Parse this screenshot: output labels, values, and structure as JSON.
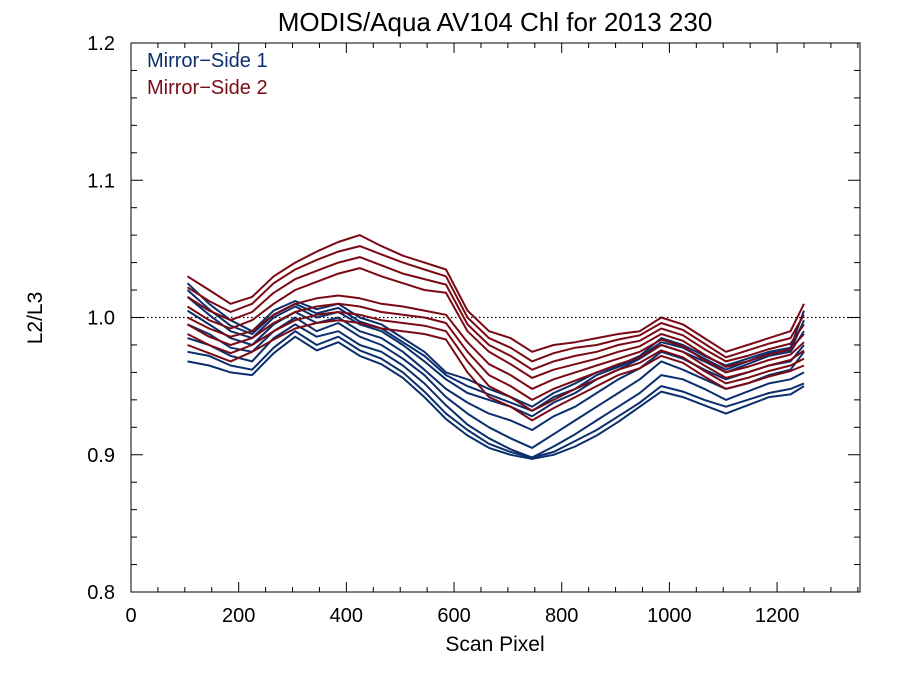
{
  "chart_data": {
    "type": "line",
    "title": "MODIS/Aqua AV104 Chl for 2013 230",
    "xlabel": "Scan Pixel",
    "ylabel": "L2/L3",
    "xlim": [
      0,
      1354
    ],
    "ylim": [
      0.8,
      1.2
    ],
    "xticks": [
      0,
      200,
      400,
      600,
      800,
      1000,
      1200
    ],
    "xtick_labels": [
      "0",
      "200",
      "400",
      "600",
      "800",
      "1000",
      "1200"
    ],
    "yticks": [
      0.8,
      0.9,
      1.0,
      1.1,
      1.2
    ],
    "ytick_labels": [
      "0.8",
      "0.9",
      "1.0",
      "1.1",
      "1.2"
    ],
    "reference_line": 1.0,
    "grid": false,
    "legend_position": "top-left",
    "x": [
      105,
      145,
      185,
      225,
      265,
      305,
      345,
      385,
      425,
      465,
      505,
      545,
      585,
      625,
      665,
      705,
      745,
      785,
      825,
      865,
      905,
      945,
      985,
      1025,
      1065,
      1105,
      1145,
      1185,
      1225,
      1250
    ],
    "series": [
      {
        "name": "Mirror−Side 1",
        "color": "#0b2f6e",
        "lines": [
          [
            1.025,
            1.01,
            0.998,
            0.99,
            1.005,
            1.012,
            1.006,
            1.01,
            1.0,
            0.995,
            0.985,
            0.975,
            0.96,
            0.955,
            0.948,
            0.942,
            0.935,
            0.945,
            0.952,
            0.96,
            0.965,
            0.972,
            0.985,
            0.98,
            0.972,
            0.965,
            0.97,
            0.975,
            0.978,
            1.005
          ],
          [
            1.015,
            1.002,
            0.99,
            0.985,
            1.0,
            1.008,
            1.0,
            1.004,
            0.995,
            0.99,
            0.98,
            0.968,
            0.955,
            0.945,
            0.94,
            0.935,
            0.928,
            0.938,
            0.945,
            0.955,
            0.962,
            0.97,
            0.98,
            0.975,
            0.968,
            0.96,
            0.966,
            0.972,
            0.975,
            0.99
          ],
          [
            1.005,
            0.995,
            0.985,
            0.98,
            0.995,
            1.004,
            0.996,
            1.0,
            0.99,
            0.985,
            0.975,
            0.962,
            0.948,
            0.938,
            0.93,
            0.925,
            0.918,
            0.928,
            0.935,
            0.945,
            0.955,
            0.963,
            0.975,
            0.97,
            0.962,
            0.955,
            0.96,
            0.965,
            0.968,
            0.98
          ],
          [
            0.995,
            0.988,
            0.978,
            0.975,
            0.99,
            1.0,
            0.99,
            0.996,
            0.986,
            0.98,
            0.97,
            0.958,
            0.942,
            0.93,
            0.92,
            0.912,
            0.905,
            0.915,
            0.925,
            0.935,
            0.945,
            0.955,
            0.968,
            0.962,
            0.955,
            0.948,
            0.952,
            0.958,
            0.962,
            0.975
          ],
          [
            0.985,
            0.98,
            0.972,
            0.968,
            0.985,
            0.995,
            0.986,
            0.99,
            0.98,
            0.975,
            0.965,
            0.952,
            0.936,
            0.922,
            0.912,
            0.904,
            0.898,
            0.906,
            0.915,
            0.925,
            0.935,
            0.945,
            0.958,
            0.955,
            0.948,
            0.94,
            0.946,
            0.952,
            0.955,
            0.96
          ],
          [
            0.975,
            0.972,
            0.965,
            0.962,
            0.978,
            0.99,
            0.98,
            0.986,
            0.976,
            0.97,
            0.96,
            0.946,
            0.93,
            0.918,
            0.908,
            0.902,
            0.898,
            0.902,
            0.91,
            0.918,
            0.928,
            0.938,
            0.95,
            0.946,
            0.94,
            0.935,
            0.94,
            0.945,
            0.948,
            0.952
          ],
          [
            1.02,
            1.006,
            0.994,
            0.988,
            1.002,
            1.01,
            1.003,
            1.007,
            0.997,
            0.992,
            0.982,
            0.972,
            0.958,
            0.95,
            0.944,
            0.938,
            0.932,
            0.942,
            0.948,
            0.958,
            0.964,
            0.971,
            0.982,
            0.978,
            0.97,
            0.962,
            0.968,
            0.974,
            0.976,
            0.998
          ],
          [
            0.968,
            0.965,
            0.96,
            0.958,
            0.974,
            0.986,
            0.976,
            0.982,
            0.972,
            0.966,
            0.956,
            0.942,
            0.926,
            0.914,
            0.905,
            0.9,
            0.897,
            0.9,
            0.906,
            0.914,
            0.924,
            0.935,
            0.946,
            0.942,
            0.936,
            0.93,
            0.936,
            0.942,
            0.944,
            0.95
          ]
        ]
      },
      {
        "name": "Mirror−Side 2",
        "color": "#7a0a14",
        "lines": [
          [
            1.03,
            1.02,
            1.01,
            1.015,
            1.03,
            1.04,
            1.048,
            1.055,
            1.06,
            1.052,
            1.045,
            1.04,
            1.035,
            1.005,
            0.99,
            0.985,
            0.975,
            0.98,
            0.982,
            0.985,
            0.988,
            0.99,
            1.0,
            0.995,
            0.985,
            0.975,
            0.98,
            0.985,
            0.99,
            1.01
          ],
          [
            1.022,
            1.012,
            1.004,
            1.01,
            1.025,
            1.035,
            1.042,
            1.048,
            1.052,
            1.046,
            1.04,
            1.035,
            1.03,
            1.0,
            0.985,
            0.978,
            0.968,
            0.974,
            0.978,
            0.98,
            0.984,
            0.987,
            0.996,
            0.991,
            0.981,
            0.971,
            0.976,
            0.981,
            0.985,
            1.002
          ],
          [
            1.015,
            1.005,
            0.998,
            1.004,
            1.018,
            1.028,
            1.034,
            1.04,
            1.044,
            1.038,
            1.032,
            1.028,
            1.024,
            0.995,
            0.98,
            0.972,
            0.962,
            0.968,
            0.972,
            0.975,
            0.98,
            0.983,
            0.992,
            0.987,
            0.977,
            0.968,
            0.972,
            0.977,
            0.981,
            0.995
          ],
          [
            1.008,
            0.998,
            0.992,
            0.998,
            1.01,
            1.02,
            1.026,
            1.032,
            1.036,
            1.03,
            1.025,
            1.02,
            1.018,
            0.99,
            0.975,
            0.966,
            0.956,
            0.962,
            0.966,
            0.97,
            0.975,
            0.979,
            0.988,
            0.983,
            0.973,
            0.964,
            0.968,
            0.973,
            0.977,
            0.988
          ],
          [
            1.0,
            0.992,
            0.986,
            0.99,
            1.002,
            1.01,
            1.014,
            1.016,
            1.014,
            1.01,
            1.008,
            1.005,
            1.002,
            0.982,
            0.966,
            0.958,
            0.948,
            0.955,
            0.96,
            0.965,
            0.97,
            0.975,
            0.984,
            0.979,
            0.969,
            0.96,
            0.964,
            0.969,
            0.973,
            0.982
          ],
          [
            0.995,
            0.986,
            0.98,
            0.985,
            0.996,
            1.004,
            1.008,
            1.01,
            1.008,
            1.004,
            1.002,
            1.0,
            0.996,
            0.975,
            0.958,
            0.95,
            0.94,
            0.948,
            0.954,
            0.96,
            0.966,
            0.971,
            0.98,
            0.975,
            0.965,
            0.956,
            0.96,
            0.965,
            0.969,
            0.976
          ],
          [
            0.988,
            0.98,
            0.974,
            0.98,
            0.99,
            0.998,
            1.002,
            1.004,
            1.002,
            0.998,
            0.996,
            0.994,
            0.99,
            0.968,
            0.95,
            0.942,
            0.932,
            0.94,
            0.948,
            0.955,
            0.962,
            0.967,
            0.976,
            0.971,
            0.961,
            0.952,
            0.956,
            0.961,
            0.965,
            0.97
          ],
          [
            0.98,
            0.974,
            0.968,
            0.975,
            0.984,
            0.992,
            0.996,
            0.998,
            0.996,
            0.992,
            0.99,
            0.988,
            0.984,
            0.96,
            0.942,
            0.935,
            0.925,
            0.934,
            0.942,
            0.95,
            0.958,
            0.963,
            0.972,
            0.967,
            0.957,
            0.948,
            0.952,
            0.957,
            0.961,
            0.965
          ]
        ]
      }
    ]
  }
}
